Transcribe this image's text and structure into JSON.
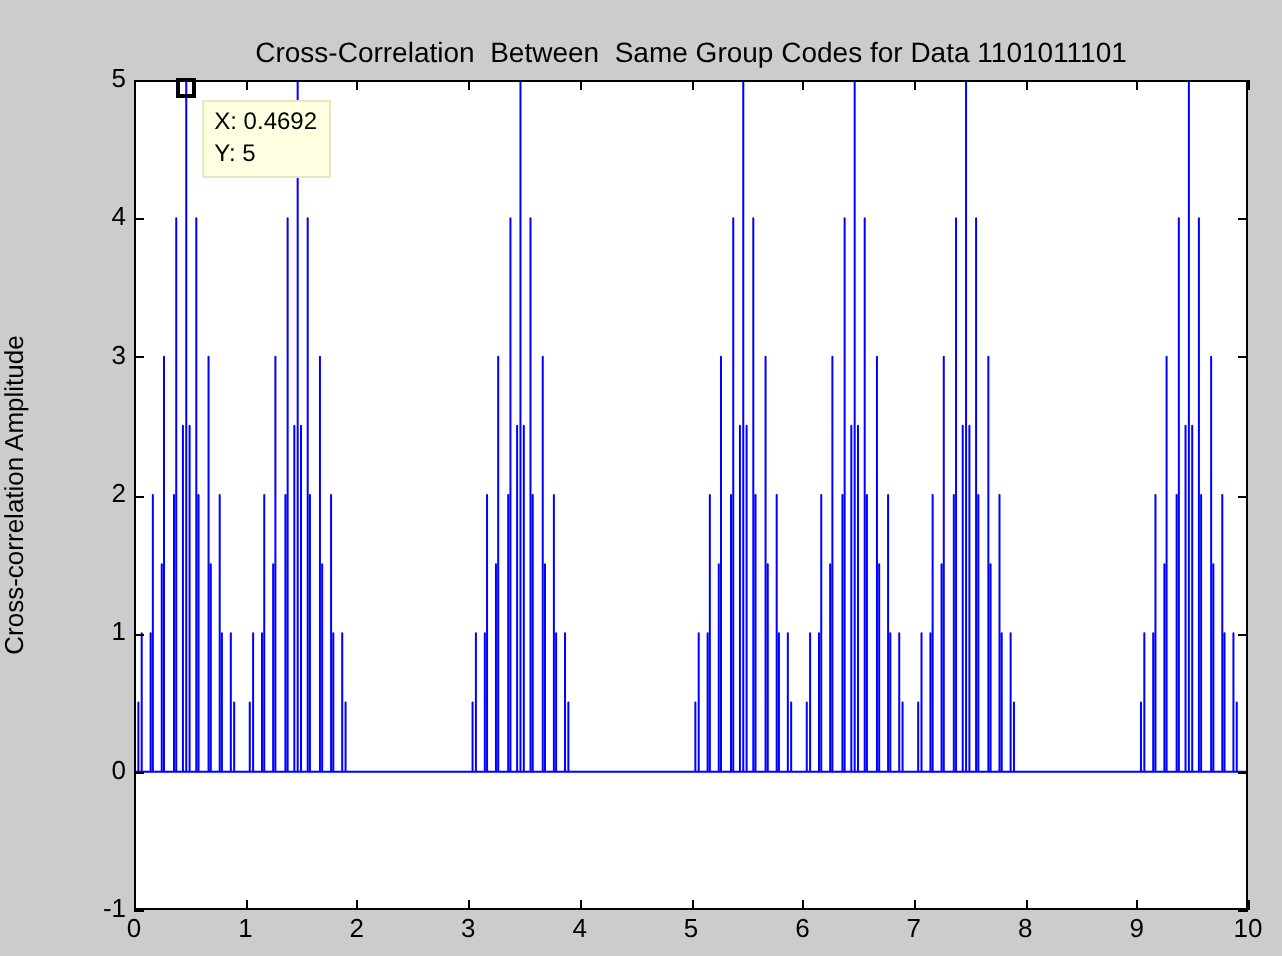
{
  "chart_data": {
    "type": "line",
    "title": "Cross-Correlation  Between  Same Group Codes for Data 1101011101",
    "ylabel": "Cross-correlation Amplitude",
    "xlim": [
      0,
      10
    ],
    "xticks": [
      0,
      1,
      2,
      3,
      4,
      5,
      6,
      7,
      8,
      9,
      10
    ],
    "ylim": [
      -1,
      5
    ],
    "yticks": [
      -1,
      0,
      1,
      2,
      3,
      4,
      5
    ],
    "grid": false,
    "legend": false,
    "marker": "none",
    "line_style": "solid",
    "annotations": [
      {
        "text": "X: 0.4692\nY: 5",
        "x": 0.4692,
        "y": 5
      }
    ],
    "series": [
      {
        "color": "#0000ff",
        "x": [
          0,
          0.0392,
          0.0392,
          0.0392,
          0.0692,
          0.0692,
          0.0692,
          0.1492,
          0.1492,
          0.1492,
          0.1692,
          0.1692,
          0.1692,
          0.2492,
          0.2492,
          0.2492,
          0.2692,
          0.2692,
          0.2692,
          0.3592,
          0.3592,
          0.3592,
          0.3792,
          0.3792,
          0.3792,
          0.4392,
          0.4392,
          0.4392,
          0.4692,
          0.4692,
          0.4692,
          0.4992,
          0.4992,
          0.4992,
          0.5592,
          0.5592,
          0.5592,
          0.5792,
          0.5792,
          0.5792,
          0.6692,
          0.6692,
          0.6692,
          0.6892,
          0.6892,
          0.6892,
          0.7692,
          0.7692,
          0.7692,
          0.7892,
          0.7892,
          0.7892,
          0.8692,
          0.8692,
          0.8692,
          0.8992,
          0.8992,
          0.8992,
          1.0392,
          1.0392,
          1.0392,
          1.0692,
          1.0692,
          1.0692,
          1.1492,
          1.1492,
          1.1492,
          1.1692,
          1.1692,
          1.1692,
          1.2492,
          1.2492,
          1.2492,
          1.2692,
          1.2692,
          1.2692,
          1.3592,
          1.3592,
          1.3592,
          1.3792,
          1.3792,
          1.3792,
          1.4392,
          1.4392,
          1.4392,
          1.4692,
          1.4692,
          1.4692,
          1.4992,
          1.4992,
          1.4992,
          1.5592,
          1.5592,
          1.5592,
          1.5792,
          1.5792,
          1.5792,
          1.6692,
          1.6692,
          1.6692,
          1.6892,
          1.6892,
          1.6892,
          1.7692,
          1.7692,
          1.7692,
          1.7892,
          1.7892,
          1.7892,
          1.8692,
          1.8692,
          1.8692,
          1.8992,
          1.8992,
          1.8992,
          3.0392,
          3.0392,
          3.0392,
          3.0692,
          3.0692,
          3.0692,
          3.1492,
          3.1492,
          3.1492,
          3.1692,
          3.1692,
          3.1692,
          3.2492,
          3.2492,
          3.2492,
          3.2692,
          3.2692,
          3.2692,
          3.3592,
          3.3592,
          3.3592,
          3.3792,
          3.3792,
          3.3792,
          3.4392,
          3.4392,
          3.4392,
          3.4692,
          3.4692,
          3.4692,
          3.4992,
          3.4992,
          3.4992,
          3.5592,
          3.5592,
          3.5592,
          3.5792,
          3.5792,
          3.5792,
          3.6692,
          3.6692,
          3.6692,
          3.6892,
          3.6892,
          3.6892,
          3.7692,
          3.7692,
          3.7692,
          3.7892,
          3.7892,
          3.7892,
          3.8692,
          3.8692,
          3.8692,
          3.8992,
          3.8992,
          3.8992,
          5.0392,
          5.0392,
          5.0392,
          5.0692,
          5.0692,
          5.0692,
          5.1492,
          5.1492,
          5.1492,
          5.1692,
          5.1692,
          5.1692,
          5.2492,
          5.2492,
          5.2492,
          5.2692,
          5.2692,
          5.2692,
          5.3592,
          5.3592,
          5.3592,
          5.3792,
          5.3792,
          5.3792,
          5.4392,
          5.4392,
          5.4392,
          5.4692,
          5.4692,
          5.4692,
          5.4992,
          5.4992,
          5.4992,
          5.5592,
          5.5592,
          5.5592,
          5.5792,
          5.5792,
          5.5792,
          5.6692,
          5.6692,
          5.6692,
          5.6892,
          5.6892,
          5.6892,
          5.7692,
          5.7692,
          5.7692,
          5.7892,
          5.7892,
          5.7892,
          5.8692,
          5.8692,
          5.8692,
          5.8992,
          5.8992,
          5.8992,
          6.0392,
          6.0392,
          6.0392,
          6.0692,
          6.0692,
          6.0692,
          6.1492,
          6.1492,
          6.1492,
          6.1692,
          6.1692,
          6.1692,
          6.2492,
          6.2492,
          6.2492,
          6.2692,
          6.2692,
          6.2692,
          6.3592,
          6.3592,
          6.3592,
          6.3792,
          6.3792,
          6.3792,
          6.4392,
          6.4392,
          6.4392,
          6.4692,
          6.4692,
          6.4692,
          6.4992,
          6.4992,
          6.4992,
          6.5592,
          6.5592,
          6.5592,
          6.5792,
          6.5792,
          6.5792,
          6.6692,
          6.6692,
          6.6692,
          6.6892,
          6.6892,
          6.6892,
          6.7692,
          6.7692,
          6.7692,
          6.7892,
          6.7892,
          6.7892,
          6.8692,
          6.8692,
          6.8692,
          6.8992,
          6.8992,
          6.8992,
          7.0392,
          7.0392,
          7.0392,
          7.0692,
          7.0692,
          7.0692,
          7.1492,
          7.1492,
          7.1492,
          7.1692,
          7.1692,
          7.1692,
          7.2492,
          7.2492,
          7.2492,
          7.2692,
          7.2692,
          7.2692,
          7.3592,
          7.3592,
          7.3592,
          7.3792,
          7.3792,
          7.3792,
          7.4392,
          7.4392,
          7.4392,
          7.4692,
          7.4692,
          7.4692,
          7.4992,
          7.4992,
          7.4992,
          7.5592,
          7.5592,
          7.5592,
          7.5792,
          7.5792,
          7.5792,
          7.6692,
          7.6692,
          7.6692,
          7.6892,
          7.6892,
          7.6892,
          7.7692,
          7.7692,
          7.7692,
          7.7892,
          7.7892,
          7.7892,
          7.8692,
          7.8692,
          7.8692,
          7.8992,
          7.8992,
          7.8992,
          9.0392,
          9.0392,
          9.0392,
          9.0692,
          9.0692,
          9.0692,
          9.1492,
          9.1492,
          9.1492,
          9.1692,
          9.1692,
          9.1692,
          9.2492,
          9.2492,
          9.2492,
          9.2692,
          9.2692,
          9.2692,
          9.3592,
          9.3592,
          9.3592,
          9.3792,
          9.3792,
          9.3792,
          9.4392,
          9.4392,
          9.4392,
          9.4692,
          9.4692,
          9.4692,
          9.4992,
          9.4992,
          9.4992,
          9.5592,
          9.5592,
          9.5592,
          9.5792,
          9.5792,
          9.5792,
          9.6692,
          9.6692,
          9.6692,
          9.6892,
          9.6892,
          9.6892,
          9.7692,
          9.7692,
          9.7692,
          9.7892,
          9.7892,
          9.7892,
          9.8692,
          9.8692,
          9.8692,
          9.8992,
          9.8992,
          9.8992,
          10
        ],
        "values": [
          0,
          0,
          0.5,
          0,
          0,
          1,
          0,
          0,
          1,
          0,
          0,
          2,
          0,
          0,
          1.5,
          0,
          0,
          3,
          0,
          0,
          2,
          0,
          0,
          4,
          0,
          0,
          2.5,
          0,
          0,
          5,
          0,
          0,
          2.5,
          0,
          0,
          4,
          0,
          0,
          2,
          0,
          0,
          3,
          0,
          0,
          1.5,
          0,
          0,
          2,
          0,
          0,
          1,
          0,
          0,
          1,
          0,
          0,
          0.5,
          0,
          0,
          0.5,
          0,
          0,
          1,
          0,
          0,
          1,
          0,
          0,
          2,
          0,
          0,
          1.5,
          0,
          0,
          3,
          0,
          0,
          2,
          0,
          0,
          4,
          0,
          0,
          2.5,
          0,
          0,
          5,
          0,
          0,
          2.5,
          0,
          0,
          4,
          0,
          0,
          2,
          0,
          0,
          3,
          0,
          0,
          1.5,
          0,
          0,
          2,
          0,
          0,
          1,
          0,
          0,
          1,
          0,
          0,
          0.5,
          0,
          0,
          0.5,
          0,
          0,
          1,
          0,
          0,
          1,
          0,
          0,
          2,
          0,
          0,
          1.5,
          0,
          0,
          3,
          0,
          0,
          2,
          0,
          0,
          4,
          0,
          0,
          2.5,
          0,
          0,
          5,
          0,
          0,
          2.5,
          0,
          0,
          4,
          0,
          0,
          2,
          0,
          0,
          3,
          0,
          0,
          1.5,
          0,
          0,
          2,
          0,
          0,
          1,
          0,
          0,
          1,
          0,
          0,
          0.5,
          0,
          0,
          0.5,
          0,
          0,
          1,
          0,
          0,
          1,
          0,
          0,
          2,
          0,
          0,
          1.5,
          0,
          0,
          3,
          0,
          0,
          2,
          0,
          0,
          4,
          0,
          0,
          2.5,
          0,
          0,
          5,
          0,
          0,
          2.5,
          0,
          0,
          4,
          0,
          0,
          2,
          0,
          0,
          3,
          0,
          0,
          1.5,
          0,
          0,
          2,
          0,
          0,
          1,
          0,
          0,
          1,
          0,
          0,
          0.5,
          0,
          0,
          0.5,
          0,
          0,
          1,
          0,
          0,
          1,
          0,
          0,
          2,
          0,
          0,
          1.5,
          0,
          0,
          3,
          0,
          0,
          2,
          0,
          0,
          4,
          0,
          0,
          2.5,
          0,
          0,
          5,
          0,
          0,
          2.5,
          0,
          0,
          4,
          0,
          0,
          2,
          0,
          0,
          3,
          0,
          0,
          1.5,
          0,
          0,
          2,
          0,
          0,
          1,
          0,
          0,
          1,
          0,
          0,
          0.5,
          0,
          0,
          0.5,
          0,
          0,
          1,
          0,
          0,
          1,
          0,
          0,
          2,
          0,
          0,
          1.5,
          0,
          0,
          3,
          0,
          0,
          2,
          0,
          0,
          4,
          0,
          0,
          2.5,
          0,
          0,
          5,
          0,
          0,
          2.5,
          0,
          0,
          4,
          0,
          0,
          2,
          0,
          0,
          3,
          0,
          0,
          1.5,
          0,
          0,
          2,
          0,
          0,
          1,
          0,
          0,
          1,
          0,
          0,
          0.5,
          0,
          0,
          0.5,
          0,
          0,
          1,
          0,
          0,
          1,
          0,
          0,
          2,
          0,
          0,
          1.5,
          0,
          0,
          3,
          0,
          0,
          2,
          0,
          0,
          4,
          0,
          0,
          2.5,
          0,
          0,
          5,
          0,
          0,
          2.5,
          0,
          0,
          4,
          0,
          0,
          2,
          0,
          0,
          3,
          0,
          0,
          1.5,
          0,
          0,
          2,
          0,
          0,
          1,
          0,
          0,
          1,
          0,
          0,
          0.5,
          0,
          0
        ]
      }
    ]
  }
}
